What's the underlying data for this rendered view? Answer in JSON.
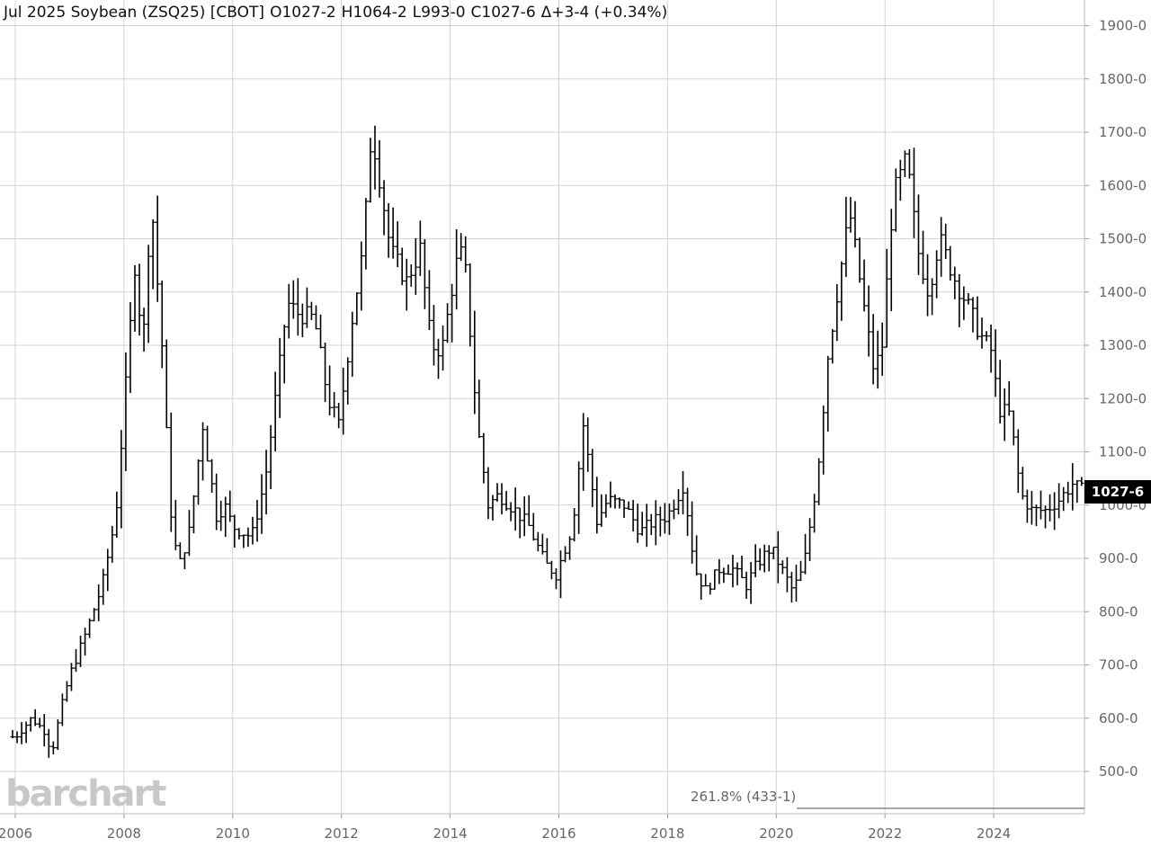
{
  "header": {
    "contract": "Jul 2025 Soybean (ZSQ25) [CBOT]",
    "open": "O1027-2",
    "high": "H1064-2",
    "low": "L993-0",
    "close": "C1027-6",
    "change": "Δ+3-4 (+0.34%)"
  },
  "logo": "barchart",
  "last_price_badge": "1027-6",
  "fib_label": "261.8% (433-1)",
  "colors": {
    "bars": "#000000",
    "grid": "#d3d3d3",
    "badge_bg": "#000000",
    "logo": "#c8c8c8"
  },
  "chart_data": {
    "type": "ohlc-bar",
    "interval": "monthly",
    "ylim": [
      450,
      1925
    ],
    "xlim": [
      2005.95,
      2025.85
    ],
    "yticks": [
      500,
      600,
      700,
      800,
      900,
      1000,
      1100,
      1200,
      1300,
      1400,
      1500,
      1600,
      1700,
      1800,
      1900
    ],
    "ytick_labels": [
      "500-0",
      "600-0",
      "700-0",
      "800-0",
      "900-0",
      "1000-0",
      "1100-0",
      "1200-0",
      "1300-0",
      "1400-0",
      "1500-0",
      "1600-0",
      "1700-0",
      "1800-0",
      "1900-0"
    ],
    "xticks": [
      2006,
      2008,
      2010,
      2012,
      2014,
      2016,
      2018,
      2020,
      2022,
      2024
    ],
    "xtick_labels": [
      "2006",
      "2008",
      "2010",
      "2012",
      "2014",
      "2016",
      "2018",
      "2020",
      "2022",
      "2024"
    ],
    "anchors": [
      [
        2006.0,
        565
      ],
      [
        2006.3,
        600
      ],
      [
        2006.55,
        575
      ],
      [
        2006.67,
        535
      ],
      [
        2006.85,
        620
      ],
      [
        2007.0,
        680
      ],
      [
        2007.3,
        760
      ],
      [
        2007.6,
        850
      ],
      [
        2007.85,
        980
      ],
      [
        2008.0,
        1180
      ],
      [
        2008.2,
        1450
      ],
      [
        2008.35,
        1300
      ],
      [
        2008.5,
        1580
      ],
      [
        2008.7,
        1300
      ],
      [
        2008.85,
        1000
      ],
      [
        2009.0,
        880
      ],
      [
        2009.2,
        950
      ],
      [
        2009.45,
        1150
      ],
      [
        2009.7,
        980
      ],
      [
        2009.85,
        1000
      ],
      [
        2010.0,
        960
      ],
      [
        2010.35,
        940
      ],
      [
        2010.6,
        1050
      ],
      [
        2010.85,
        1250
      ],
      [
        2011.0,
        1380
      ],
      [
        2011.2,
        1360
      ],
      [
        2011.5,
        1350
      ],
      [
        2011.75,
        1200
      ],
      [
        2011.95,
        1150
      ],
      [
        2012.2,
        1350
      ],
      [
        2012.4,
        1480
      ],
      [
        2012.55,
        1700
      ],
      [
        2012.65,
        1650
      ],
      [
        2012.9,
        1480
      ],
      [
        2013.2,
        1420
      ],
      [
        2013.45,
        1480
      ],
      [
        2013.65,
        1300
      ],
      [
        2013.85,
        1290
      ],
      [
        2014.1,
        1450
      ],
      [
        2014.25,
        1480
      ],
      [
        2014.5,
        1150
      ],
      [
        2014.7,
        1000
      ],
      [
        2014.9,
        1020
      ],
      [
        2015.2,
        990
      ],
      [
        2015.45,
        960
      ],
      [
        2015.75,
        890
      ],
      [
        2015.95,
        870
      ],
      [
        2016.25,
        960
      ],
      [
        2016.45,
        1150
      ],
      [
        2016.7,
        970
      ],
      [
        2016.9,
        1010
      ],
      [
        2017.2,
        1000
      ],
      [
        2017.5,
        950
      ],
      [
        2017.75,
        970
      ],
      [
        2018.0,
        980
      ],
      [
        2018.3,
        1040
      ],
      [
        2018.5,
        880
      ],
      [
        2018.7,
        840
      ],
      [
        2018.95,
        880
      ],
      [
        2019.2,
        880
      ],
      [
        2019.45,
        850
      ],
      [
        2019.65,
        890
      ],
      [
        2019.9,
        920
      ],
      [
        2020.1,
        880
      ],
      [
        2020.3,
        840
      ],
      [
        2020.5,
        880
      ],
      [
        2020.75,
        1050
      ],
      [
        2020.95,
        1280
      ],
      [
        2021.15,
        1420
      ],
      [
        2021.35,
        1550
      ],
      [
        2021.6,
        1380
      ],
      [
        2021.8,
        1250
      ],
      [
        2021.95,
        1300
      ],
      [
        2022.15,
        1580
      ],
      [
        2022.4,
        1650
      ],
      [
        2022.6,
        1480
      ],
      [
        2022.8,
        1400
      ],
      [
        2023.0,
        1500
      ],
      [
        2023.3,
        1420
      ],
      [
        2023.5,
        1380
      ],
      [
        2023.75,
        1320
      ],
      [
        2023.95,
        1290
      ],
      [
        2024.1,
        1180
      ],
      [
        2024.3,
        1170
      ],
      [
        2024.5,
        1020
      ],
      [
        2024.7,
        990
      ],
      [
        2024.95,
        990
      ],
      [
        2025.2,
        1010
      ],
      [
        2025.45,
        1040
      ],
      [
        2025.6,
        1028
      ]
    ],
    "last_close": 1027.75,
    "fib_level": 433.125
  }
}
